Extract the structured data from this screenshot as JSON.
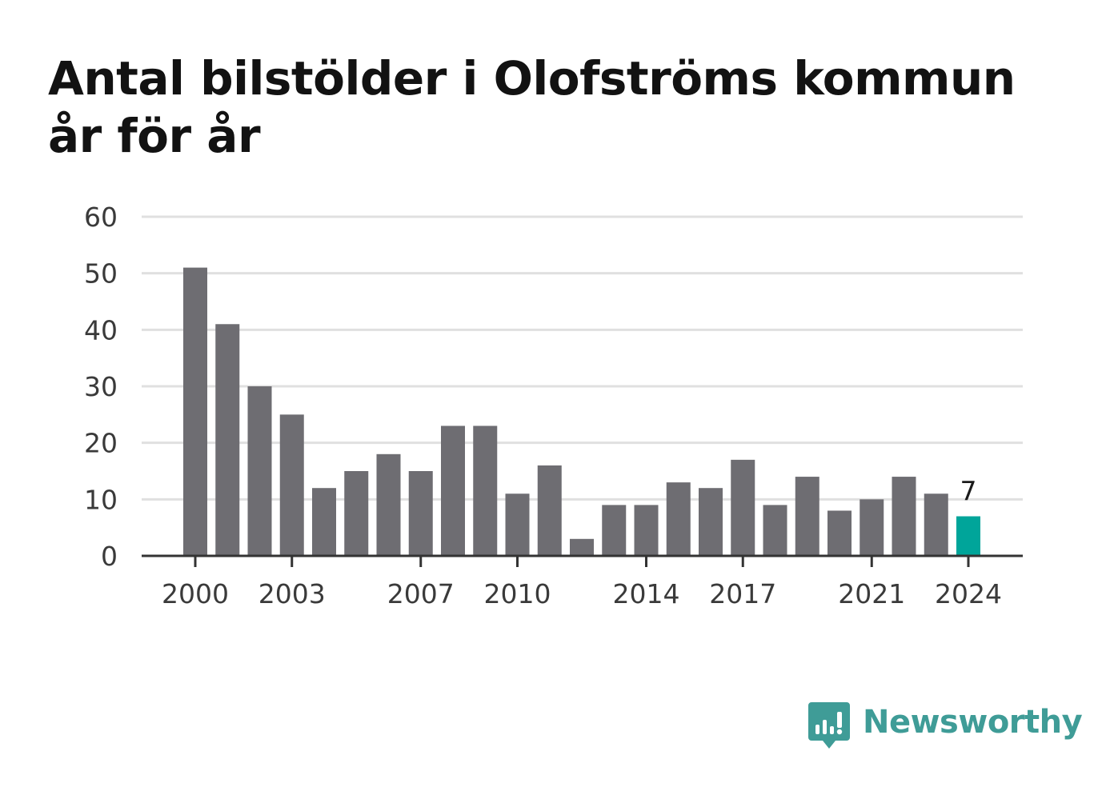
{
  "title": "Antal bilstölder i Olofströms kommun år för år",
  "brand": {
    "name": "Newsworthy",
    "color": "#3f9c97"
  },
  "colors": {
    "bar": "#6e6d72",
    "highlight": "#00a59a",
    "grid": "#e0e0e0",
    "axis": "#333333"
  },
  "chart_data": {
    "type": "bar",
    "title": "Antal bilstölder i Olofströms kommun år för år",
    "xlabel": "",
    "ylabel": "",
    "categories": [
      2000,
      2001,
      2002,
      2003,
      2004,
      2005,
      2006,
      2007,
      2008,
      2009,
      2010,
      2011,
      2012,
      2013,
      2014,
      2015,
      2016,
      2017,
      2018,
      2019,
      2020,
      2021,
      2022,
      2023,
      2024
    ],
    "values": [
      51,
      41,
      30,
      25,
      12,
      15,
      18,
      15,
      23,
      23,
      11,
      16,
      3,
      9,
      9,
      13,
      12,
      17,
      9,
      14,
      8,
      10,
      14,
      11,
      7
    ],
    "x_tick_labels": [
      "2000",
      "2003",
      "2007",
      "2010",
      "2014",
      "2017",
      "2021",
      "2024"
    ],
    "y_ticks": [
      0,
      10,
      20,
      30,
      40,
      50,
      60
    ],
    "ylim": [
      0,
      60
    ],
    "grid": true,
    "highlight": {
      "category": 2024,
      "label": "7"
    }
  }
}
